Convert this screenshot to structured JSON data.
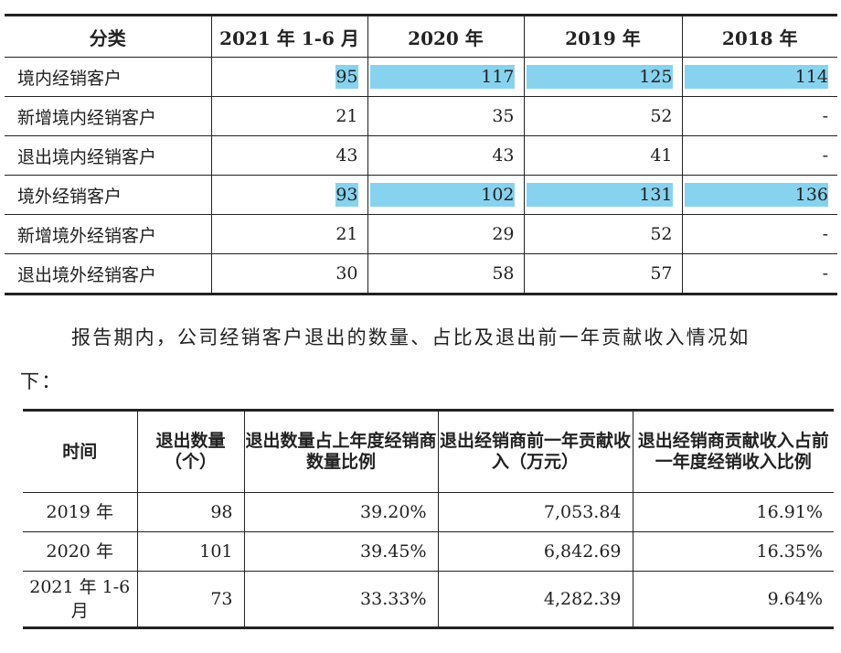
{
  "table1": {
    "headers": [
      "分类",
      "2021 年 1-6 月",
      "2020 年",
      "2019 年",
      "2018 年"
    ],
    "rows": [
      {
        "label": "境内经销客户",
        "values": [
          "95",
          "117",
          "125",
          "114"
        ],
        "highlight": true
      },
      {
        "label": "新增境内经销客户",
        "values": [
          "21",
          "35",
          "52",
          "-"
        ],
        "highlight": false
      },
      {
        "label": "退出境内经销客户",
        "values": [
          "43",
          "43",
          "41",
          "-"
        ],
        "highlight": false
      },
      {
        "label": "境外经销客户",
        "values": [
          "93",
          "102",
          "131",
          "136"
        ],
        "highlight": true
      },
      {
        "label": "新增境外经销客户",
        "values": [
          "21",
          "29",
          "52",
          "-"
        ],
        "highlight": false
      },
      {
        "label": "退出境外经销客户",
        "values": [
          "30",
          "58",
          "57",
          "-"
        ],
        "highlight": false
      }
    ]
  },
  "highlight_color": "#87d3ef",
  "paragraph": {
    "line1": "报告期内，公司经销客户退出的数量、占比及退出前一年贡献收入情况如",
    "line2": "下："
  },
  "table2": {
    "headers": [
      "时间",
      "退出数量（个）",
      "退出数量占上年度经销商数量比例",
      "退出经销商前一年贡献收入（万元）",
      "退出经销商贡献收入占前一年度经销收入比例"
    ],
    "rows": [
      {
        "period": "2019 年",
        "count": "98",
        "ratio": "39.20%",
        "revenue": "7,053.84",
        "revenue_ratio": "16.91%"
      },
      {
        "period": "2020 年",
        "count": "101",
        "ratio": "39.45%",
        "revenue": "6,842.69",
        "revenue_ratio": "16.35%"
      },
      {
        "period": "2021 年 1-6 月",
        "count": "73",
        "ratio": "33.33%",
        "revenue": "4,282.39",
        "revenue_ratio": "9.64%"
      }
    ]
  }
}
